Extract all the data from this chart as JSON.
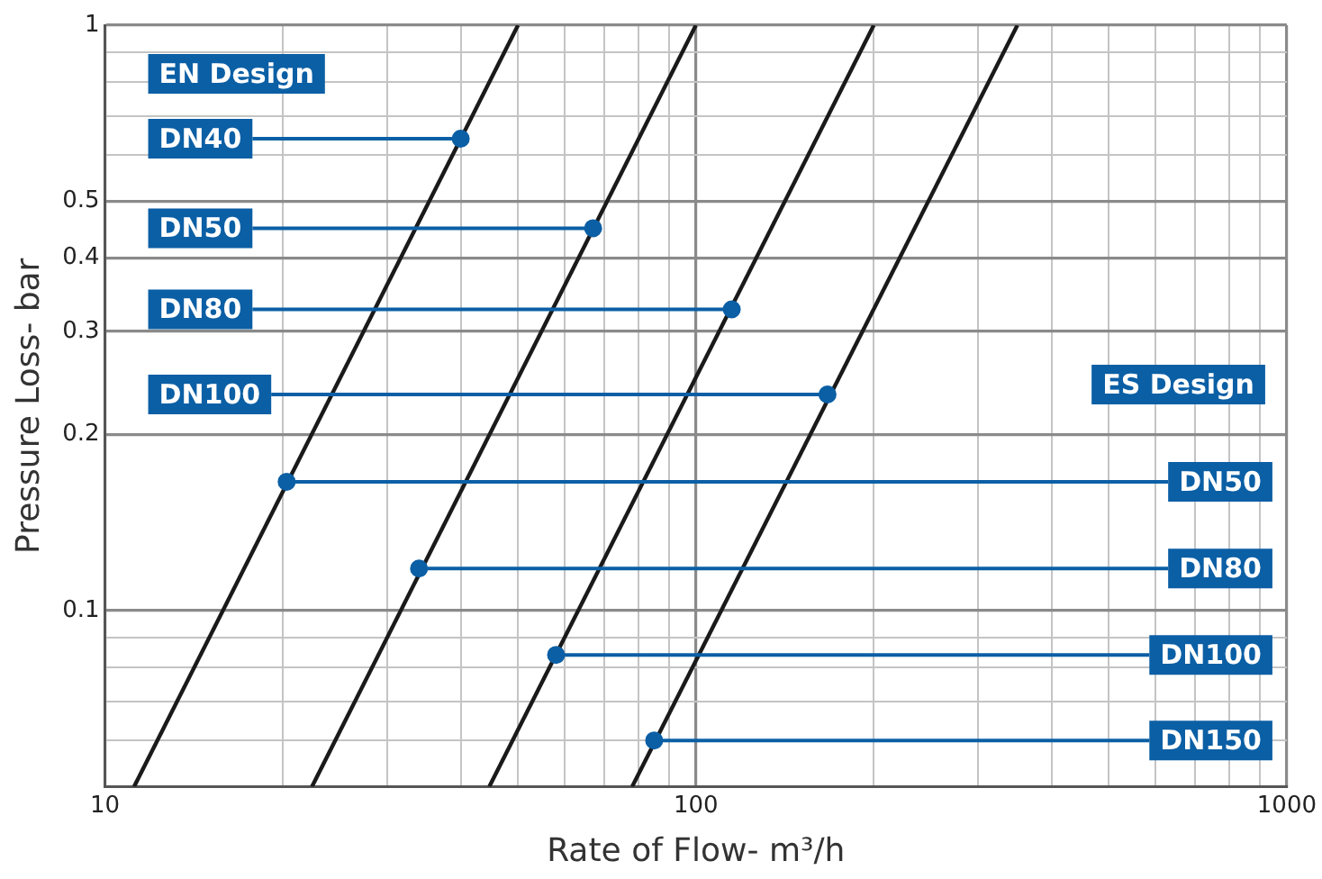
{
  "chart_data": {
    "type": "line",
    "xlabel": "Rate of Flow- m³/h",
    "ylabel": "Pressure Loss- bar",
    "log": "xy",
    "grid": true,
    "legend": false,
    "line_style": "solid",
    "xlim": [
      10,
      1000
    ],
    "ylim": [
      0.05,
      1
    ],
    "xticks": [
      10,
      {
        "value": 20,
        "label": null
      },
      {
        "value": 30,
        "label": null
      },
      {
        "value": 40,
        "label": null
      },
      {
        "value": 50,
        "label": null
      },
      {
        "value": 60,
        "label": null
      },
      {
        "value": 70,
        "label": null
      },
      {
        "value": 80,
        "label": null
      },
      {
        "value": 90,
        "label": null
      },
      100,
      {
        "value": 200,
        "label": null
      },
      {
        "value": 300,
        "label": null
      },
      {
        "value": 400,
        "label": null
      },
      {
        "value": 500,
        "label": null
      },
      {
        "value": 600,
        "label": null
      },
      {
        "value": 700,
        "label": null
      },
      {
        "value": 800,
        "label": null
      },
      {
        "value": 900,
        "label": null
      },
      1000
    ],
    "yticks": [
      {
        "value": 0.06,
        "label": null
      },
      {
        "value": 0.07,
        "label": null
      },
      {
        "value": 0.08,
        "label": null
      },
      {
        "value": 0.09,
        "label": null
      },
      0.1,
      0.2,
      0.3,
      0.4,
      0.5,
      {
        "value": 0.6,
        "label": null
      },
      {
        "value": 0.7,
        "label": null
      },
      {
        "value": 0.8,
        "label": null
      },
      {
        "value": 0.9,
        "label": null
      },
      1
    ],
    "series": [
      {
        "color": "#1a1a1a",
        "x": [
          11.2,
          50
        ],
        "values": [
          0.05,
          1
        ]
      },
      {
        "color": "#1a1a1a",
        "x": [
          22.4,
          100
        ],
        "values": [
          0.05,
          1
        ]
      },
      {
        "color": "#1a1a1a",
        "x": [
          44.7,
          200
        ],
        "values": [
          0.05,
          1
        ]
      },
      {
        "color": "#1a1a1a",
        "x": [
          78,
          350
        ],
        "values": [
          0.05,
          1
        ]
      },
      {
        "type": "scatter",
        "marker": "circle",
        "name": "EN Design",
        "color": "#0b5fa5",
        "x": [
          40,
          67,
          115,
          167
        ],
        "values": [
          0.64,
          0.45,
          0.327,
          0.234
        ],
        "value_labels": [
          "DN40",
          "DN50",
          "DN80",
          "DN100"
        ]
      },
      {
        "type": "scatter",
        "marker": "circle",
        "name": "ES Design",
        "color": "#0b5fa5",
        "x": [
          20.3,
          34,
          58,
          85
        ],
        "values": [
          0.166,
          0.118,
          0.084,
          0.06
        ],
        "value_labels": [
          "DN50",
          "DN80",
          "DN100",
          "DN150"
        ]
      }
    ]
  }
}
